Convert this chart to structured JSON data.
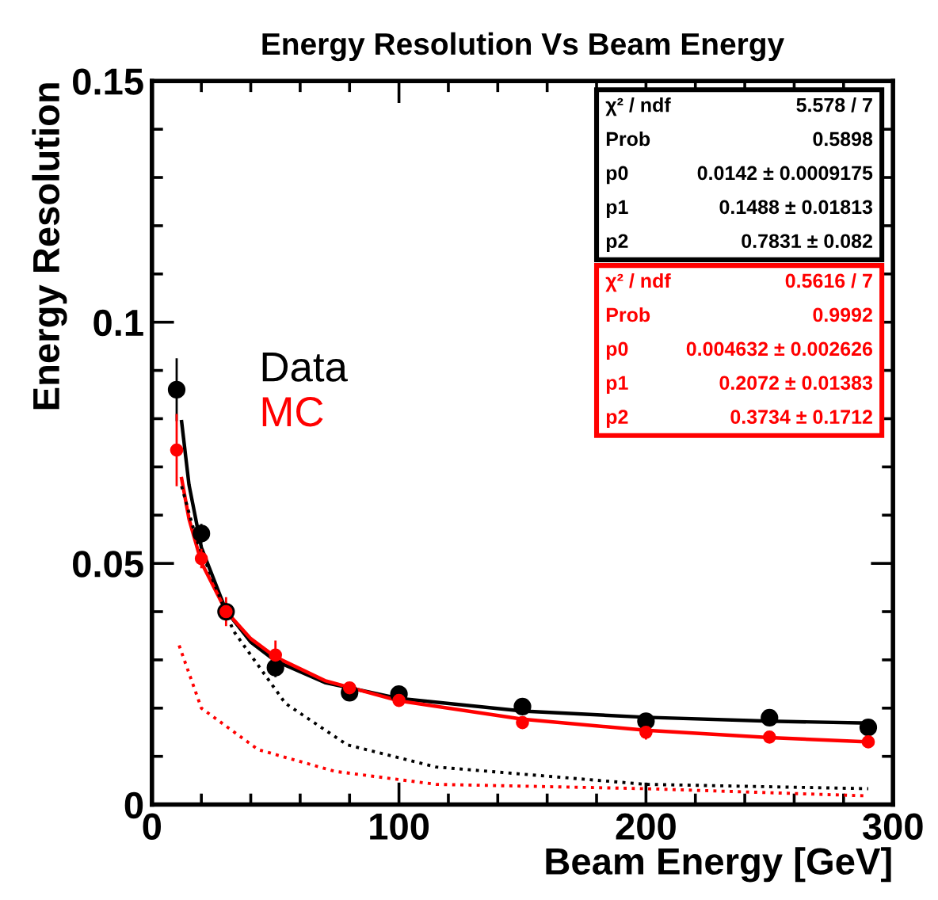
{
  "chart_data": {
    "type": "scatter",
    "title": "Energy Resolution Vs Beam Energy",
    "xlabel": "Beam Energy [GeV]",
    "ylabel": "Energy Resolution",
    "xlim": [
      0,
      300
    ],
    "xticks": [
      0,
      100,
      200,
      300
    ],
    "ylim": [
      0,
      0.15
    ],
    "yticks": [
      0,
      0.05,
      0.1,
      0.15
    ],
    "grid": false,
    "series": [
      {
        "name": "Data",
        "color": "#000000",
        "marker": "circle",
        "x": [
          10,
          20,
          30,
          50,
          80,
          100,
          150,
          200,
          250,
          290
        ],
        "values": [
          0.086,
          0.0562,
          0.04,
          0.0284,
          0.0232,
          0.0229,
          0.0203,
          0.0173,
          0.018,
          0.016
        ],
        "errors": [
          0.0065,
          0.002,
          0.002,
          0.002,
          0.001,
          0.001,
          0.001,
          0.001,
          0.001,
          0.001
        ]
      },
      {
        "name": "MC",
        "color": "#ff0000",
        "marker": "circle",
        "x": [
          10,
          20,
          30,
          50,
          80,
          100,
          150,
          200,
          250,
          290
        ],
        "values": [
          0.0735,
          0.051,
          0.04,
          0.031,
          0.0242,
          0.0216,
          0.017,
          0.015,
          0.014,
          0.013
        ],
        "errors": [
          0.0075,
          0.002,
          0.003,
          0.003,
          0.001,
          0.001,
          0.001,
          0.0015,
          0.001,
          0.001
        ]
      },
      {
        "type": "line",
        "color": "#000000",
        "line_style": "solid",
        "x": [
          12,
          15,
          20,
          30,
          40,
          50,
          70,
          100,
          150,
          200,
          250,
          290
        ],
        "values": [
          0.0794,
          0.0663,
          0.0533,
          0.0402,
          0.0337,
          0.0298,
          0.0253,
          0.022,
          0.0194,
          0.0181,
          0.0173,
          0.0169
        ]
      },
      {
        "type": "line",
        "color": "#ff0000",
        "line_style": "solid",
        "x": [
          12,
          15,
          20,
          30,
          40,
          50,
          70,
          100,
          150,
          200,
          250,
          290
        ],
        "values": [
          0.0676,
          0.0592,
          0.0502,
          0.0401,
          0.0344,
          0.0306,
          0.0257,
          0.0215,
          0.0177,
          0.0154,
          0.0139,
          0.013
        ]
      },
      {
        "type": "line",
        "color": "#000000",
        "line_style": "dotted",
        "x": [
          12,
          18,
          33,
          54,
          79,
          115,
          200,
          290
        ],
        "values": [
          0.066,
          0.055,
          0.036,
          0.021,
          0.0124,
          0.0078,
          0.0042,
          0.0033
        ]
      },
      {
        "type": "line",
        "color": "#ff0000",
        "line_style": "dotted",
        "x": [
          11,
          20,
          43,
          74,
          115,
          200,
          290
        ],
        "values": [
          0.033,
          0.02,
          0.0114,
          0.0069,
          0.0042,
          0.0033,
          0.0018
        ]
      }
    ],
    "annotations": [
      "χ² / ndf",
      "5.578 / 7",
      "Prob",
      "0.5898",
      "p0",
      "0.0142 ± 0.0009175",
      "p1",
      "0.1488 ± 0.01813",
      "p2",
      "0.7831 ± 0.082",
      "χ² / ndf",
      "0.5616 / 7",
      "Prob",
      "0.9992",
      "p0",
      "0.004632 ± 0.002626",
      "p1",
      "0.2072 ± 0.01383",
      "p2",
      "0.3734 ± 0.1712"
    ]
  }
}
